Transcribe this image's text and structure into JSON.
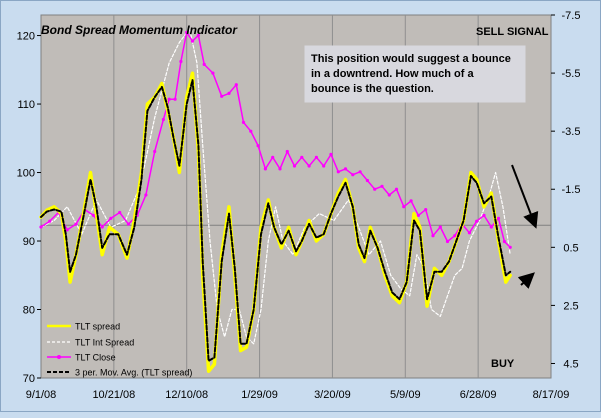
{
  "chart_data": {
    "type": "line",
    "title": "Bond Spread Momentum Indicator",
    "x_tick_labels": [
      "9/1/08",
      "10/21/08",
      "12/10/08",
      "1/29/09",
      "3/20/09",
      "5/9/09",
      "6/28/09",
      "8/17/09"
    ],
    "x_range": [
      "2008-09-01",
      "2009-08-17"
    ],
    "y_left": {
      "ticks": [
        70,
        80,
        90,
        100,
        110,
        120
      ],
      "range": [
        70,
        123
      ]
    },
    "y_right": {
      "ticks": [
        "-7.5",
        "-5.5",
        "-3.5",
        "-1.5",
        "0.5",
        "2.5",
        "4.5"
      ],
      "range": [
        -7.5,
        5.0
      ],
      "reversed": true
    },
    "horizontal_line": {
      "y_left": 92.3
    },
    "grid": "vertical",
    "legend_position": "bottom-left",
    "annotations": {
      "sell_signal": "SELL SIGNAL",
      "buy": "BUY",
      "note": "This position would suggest a bounce in a downtrend.  How much of a bounce is the question."
    },
    "series": [
      {
        "name": "TLT spread",
        "color": "#ffff00",
        "axis": "left",
        "points": [
          [
            "2008-09-01",
            93.5
          ],
          [
            "2008-09-05",
            94.5
          ],
          [
            "2008-09-10",
            95
          ],
          [
            "2008-09-15",
            94
          ],
          [
            "2008-09-18",
            90
          ],
          [
            "2008-09-21",
            84
          ],
          [
            "2008-09-25",
            88
          ],
          [
            "2008-10-01",
            95
          ],
          [
            "2008-10-05",
            100
          ],
          [
            "2008-10-09",
            94
          ],
          [
            "2008-10-13",
            88
          ],
          [
            "2008-10-18",
            92
          ],
          [
            "2008-10-24",
            91
          ],
          [
            "2008-10-30",
            87.5
          ],
          [
            "2008-11-04",
            93
          ],
          [
            "2008-11-09",
            100
          ],
          [
            "2008-11-13",
            110
          ],
          [
            "2008-11-18",
            111
          ],
          [
            "2008-11-23",
            113
          ],
          [
            "2008-11-27",
            109
          ],
          [
            "2008-12-01",
            105
          ],
          [
            "2008-12-05",
            100
          ],
          [
            "2008-12-10",
            111
          ],
          [
            "2008-12-14",
            114.5
          ],
          [
            "2008-12-18",
            103
          ],
          [
            "2008-12-21",
            85
          ],
          [
            "2008-12-25",
            71
          ],
          [
            "2008-12-29",
            72
          ],
          [
            "2009-01-03",
            88
          ],
          [
            "2009-01-08",
            95
          ],
          [
            "2009-01-12",
            85
          ],
          [
            "2009-01-16",
            74
          ],
          [
            "2009-01-20",
            74.5
          ],
          [
            "2009-01-25",
            80
          ],
          [
            "2009-01-30",
            92
          ],
          [
            "2009-02-04",
            96
          ],
          [
            "2009-02-08",
            92
          ],
          [
            "2009-02-13",
            89
          ],
          [
            "2009-02-18",
            92
          ],
          [
            "2009-02-23",
            88
          ],
          [
            "2009-02-27",
            90
          ],
          [
            "2009-03-04",
            93
          ],
          [
            "2009-03-09",
            90
          ],
          [
            "2009-03-14",
            91
          ],
          [
            "2009-03-19",
            94
          ],
          [
            "2009-03-24",
            97
          ],
          [
            "2009-03-29",
            99
          ],
          [
            "2009-04-03",
            95
          ],
          [
            "2009-04-07",
            89
          ],
          [
            "2009-04-11",
            87
          ],
          [
            "2009-04-15",
            92
          ],
          [
            "2009-04-20",
            89
          ],
          [
            "2009-04-25",
            85
          ],
          [
            "2009-04-30",
            82
          ],
          [
            "2009-05-05",
            81
          ],
          [
            "2009-05-10",
            84
          ],
          [
            "2009-05-15",
            94
          ],
          [
            "2009-05-19",
            92
          ],
          [
            "2009-05-24",
            80.5
          ],
          [
            "2009-05-29",
            86
          ],
          [
            "2009-06-03",
            85
          ],
          [
            "2009-06-08",
            87
          ],
          [
            "2009-06-13",
            90
          ],
          [
            "2009-06-18",
            93
          ],
          [
            "2009-06-23",
            100
          ],
          [
            "2009-06-27",
            99
          ],
          [
            "2009-07-02",
            95
          ],
          [
            "2009-07-07",
            97
          ],
          [
            "2009-07-12",
            90
          ],
          [
            "2009-07-17",
            84
          ],
          [
            "2009-07-20",
            85
          ]
        ]
      },
      {
        "name": "TLT Int Spread",
        "color": "#ffffff",
        "axis": "left",
        "points": [
          [
            "2008-09-01",
            92
          ],
          [
            "2008-09-10",
            93
          ],
          [
            "2008-09-19",
            95
          ],
          [
            "2008-09-29",
            91
          ],
          [
            "2008-10-09",
            96
          ],
          [
            "2008-10-19",
            92
          ],
          [
            "2008-10-29",
            93
          ],
          [
            "2008-11-08",
            98
          ],
          [
            "2008-11-18",
            108
          ],
          [
            "2008-11-28",
            116
          ],
          [
            "2008-12-05",
            119
          ],
          [
            "2008-12-12",
            121
          ],
          [
            "2008-12-17",
            116
          ],
          [
            "2008-12-21",
            104
          ],
          [
            "2008-12-26",
            90
          ],
          [
            "2008-12-31",
            80
          ],
          [
            "2009-01-05",
            76
          ],
          [
            "2009-01-10",
            80
          ],
          [
            "2009-01-15",
            80
          ],
          [
            "2009-01-20",
            76
          ],
          [
            "2009-01-25",
            75
          ],
          [
            "2009-01-30",
            80
          ],
          [
            "2009-02-04",
            90
          ],
          [
            "2009-02-09",
            95
          ],
          [
            "2009-02-14",
            90
          ],
          [
            "2009-02-21",
            88
          ],
          [
            "2009-03-01",
            92
          ],
          [
            "2009-03-11",
            94
          ],
          [
            "2009-03-21",
            93
          ],
          [
            "2009-03-31",
            96
          ],
          [
            "2009-04-07",
            92
          ],
          [
            "2009-04-14",
            88
          ],
          [
            "2009-04-22",
            90
          ],
          [
            "2009-04-29",
            85
          ],
          [
            "2009-05-06",
            83
          ],
          [
            "2009-05-12",
            82
          ],
          [
            "2009-05-17",
            88
          ],
          [
            "2009-05-22",
            86
          ],
          [
            "2009-05-27",
            80
          ],
          [
            "2009-06-02",
            79
          ],
          [
            "2009-06-07",
            82
          ],
          [
            "2009-06-12",
            85
          ],
          [
            "2009-06-17",
            86
          ],
          [
            "2009-06-22",
            90
          ],
          [
            "2009-06-29",
            93
          ],
          [
            "2009-07-06",
            97
          ],
          [
            "2009-07-10",
            100
          ],
          [
            "2009-07-15",
            95
          ],
          [
            "2009-07-20",
            88
          ]
        ]
      },
      {
        "name": "TLT Close",
        "color": "#ff00ff",
        "axis": "right",
        "points": [
          [
            "2008-09-01",
            -0.2
          ],
          [
            "2008-09-07",
            -0.4
          ],
          [
            "2008-09-13",
            -0.7
          ],
          [
            "2008-09-19",
            -0.1
          ],
          [
            "2008-09-25",
            -0.3
          ],
          [
            "2008-10-01",
            -0.8
          ],
          [
            "2008-10-07",
            -0.6
          ],
          [
            "2008-10-13",
            -0.2
          ],
          [
            "2008-10-19",
            -0.5
          ],
          [
            "2008-10-25",
            -0.7
          ],
          [
            "2008-10-31",
            -0.3
          ],
          [
            "2008-11-06",
            -0.6
          ],
          [
            "2008-11-12",
            -1.3
          ],
          [
            "2008-11-18",
            -2.8
          ],
          [
            "2008-11-24",
            -3.9
          ],
          [
            "2008-11-28",
            -4.6
          ],
          [
            "2008-12-02",
            -4.6
          ],
          [
            "2008-12-06",
            -5.9
          ],
          [
            "2008-12-10",
            -6.9
          ],
          [
            "2008-12-14",
            -6.6
          ],
          [
            "2008-12-18",
            -6.8
          ],
          [
            "2008-12-22",
            -5.8
          ],
          [
            "2008-12-28",
            -5.5
          ],
          [
            "2009-01-03",
            -4.7
          ],
          [
            "2009-01-08",
            -4.8
          ],
          [
            "2009-01-13",
            -5.1
          ],
          [
            "2009-01-18",
            -3.8
          ],
          [
            "2009-01-23",
            -3.5
          ],
          [
            "2009-01-28",
            -3.0
          ],
          [
            "2009-02-02",
            -2.2
          ],
          [
            "2009-02-07",
            -2.6
          ],
          [
            "2009-02-12",
            -2.2
          ],
          [
            "2009-02-17",
            -2.8
          ],
          [
            "2009-02-22",
            -2.3
          ],
          [
            "2009-02-27",
            -2.6
          ],
          [
            "2009-03-04",
            -2.3
          ],
          [
            "2009-03-09",
            -2.6
          ],
          [
            "2009-03-14",
            -2.3
          ],
          [
            "2009-03-19",
            -2.7
          ],
          [
            "2009-03-24",
            -2.1
          ],
          [
            "2009-03-29",
            -2.2
          ],
          [
            "2009-04-03",
            -2.0
          ],
          [
            "2009-04-08",
            -2.1
          ],
          [
            "2009-04-13",
            -1.8
          ],
          [
            "2009-04-18",
            -1.5
          ],
          [
            "2009-04-23",
            -1.6
          ],
          [
            "2009-04-28",
            -1.3
          ],
          [
            "2009-05-03",
            -1.5
          ],
          [
            "2009-05-08",
            -0.9
          ],
          [
            "2009-05-13",
            -1.1
          ],
          [
            "2009-05-18",
            -0.6
          ],
          [
            "2009-05-23",
            -0.8
          ],
          [
            "2009-05-28",
            0.1
          ],
          [
            "2009-06-02",
            -0.2
          ],
          [
            "2009-06-07",
            0.3
          ],
          [
            "2009-06-12",
            0.1
          ],
          [
            "2009-06-17",
            -0.3
          ],
          [
            "2009-06-22",
            0.0
          ],
          [
            "2009-06-27",
            -0.4
          ],
          [
            "2009-07-02",
            -0.6
          ],
          [
            "2009-07-07",
            -0.2
          ],
          [
            "2009-07-12",
            -0.5
          ],
          [
            "2009-07-16",
            0.3
          ],
          [
            "2009-07-20",
            0.5
          ]
        ]
      },
      {
        "name": "3 per. Mov. Avg. (TLT spread)",
        "color": "#000000",
        "axis": "left",
        "points": [
          [
            "2008-09-01",
            93.5
          ],
          [
            "2008-09-05",
            94.3
          ],
          [
            "2008-09-10",
            94.6
          ],
          [
            "2008-09-15",
            94.3
          ],
          [
            "2008-09-18",
            91
          ],
          [
            "2008-09-21",
            85.5
          ],
          [
            "2008-09-25",
            88
          ],
          [
            "2008-10-01",
            94.5
          ],
          [
            "2008-10-05",
            99
          ],
          [
            "2008-10-09",
            95
          ],
          [
            "2008-10-13",
            89
          ],
          [
            "2008-10-18",
            91
          ],
          [
            "2008-10-24",
            91
          ],
          [
            "2008-10-30",
            88
          ],
          [
            "2008-11-04",
            92
          ],
          [
            "2008-11-09",
            99
          ],
          [
            "2008-11-13",
            109
          ],
          [
            "2008-11-18",
            111
          ],
          [
            "2008-11-23",
            112.5
          ],
          [
            "2008-11-27",
            109.5
          ],
          [
            "2008-12-01",
            105
          ],
          [
            "2008-12-05",
            101
          ],
          [
            "2008-12-10",
            110
          ],
          [
            "2008-12-14",
            113.5
          ],
          [
            "2008-12-18",
            104
          ],
          [
            "2008-12-21",
            87
          ],
          [
            "2008-12-25",
            72.5
          ],
          [
            "2008-12-29",
            73
          ],
          [
            "2009-01-03",
            87
          ],
          [
            "2009-01-08",
            94
          ],
          [
            "2009-01-12",
            86
          ],
          [
            "2009-01-16",
            75
          ],
          [
            "2009-01-20",
            75
          ],
          [
            "2009-01-25",
            80
          ],
          [
            "2009-01-30",
            91
          ],
          [
            "2009-02-04",
            95.5
          ],
          [
            "2009-02-08",
            92
          ],
          [
            "2009-02-13",
            89.5
          ],
          [
            "2009-02-18",
            91.5
          ],
          [
            "2009-02-23",
            88.5
          ],
          [
            "2009-02-27",
            90
          ],
          [
            "2009-03-04",
            92.5
          ],
          [
            "2009-03-09",
            90.5
          ],
          [
            "2009-03-14",
            91
          ],
          [
            "2009-03-19",
            94
          ],
          [
            "2009-03-24",
            96.5
          ],
          [
            "2009-03-29",
            98.5
          ],
          [
            "2009-04-03",
            95
          ],
          [
            "2009-04-07",
            89.5
          ],
          [
            "2009-04-11",
            87.5
          ],
          [
            "2009-04-15",
            91.5
          ],
          [
            "2009-04-20",
            89
          ],
          [
            "2009-04-25",
            85.5
          ],
          [
            "2009-04-30",
            82.5
          ],
          [
            "2009-05-05",
            81.5
          ],
          [
            "2009-05-10",
            84
          ],
          [
            "2009-05-15",
            93
          ],
          [
            "2009-05-19",
            91.5
          ],
          [
            "2009-05-24",
            81.5
          ],
          [
            "2009-05-29",
            85.5
          ],
          [
            "2009-06-03",
            85.5
          ],
          [
            "2009-06-08",
            87
          ],
          [
            "2009-06-13",
            90
          ],
          [
            "2009-06-18",
            93
          ],
          [
            "2009-06-23",
            99.5
          ],
          [
            "2009-06-27",
            98.5
          ],
          [
            "2009-07-02",
            95.5
          ],
          [
            "2009-07-07",
            96.5
          ],
          [
            "2009-07-12",
            90.5
          ],
          [
            "2009-07-17",
            85
          ],
          [
            "2009-07-20",
            85.5
          ]
        ]
      }
    ]
  }
}
